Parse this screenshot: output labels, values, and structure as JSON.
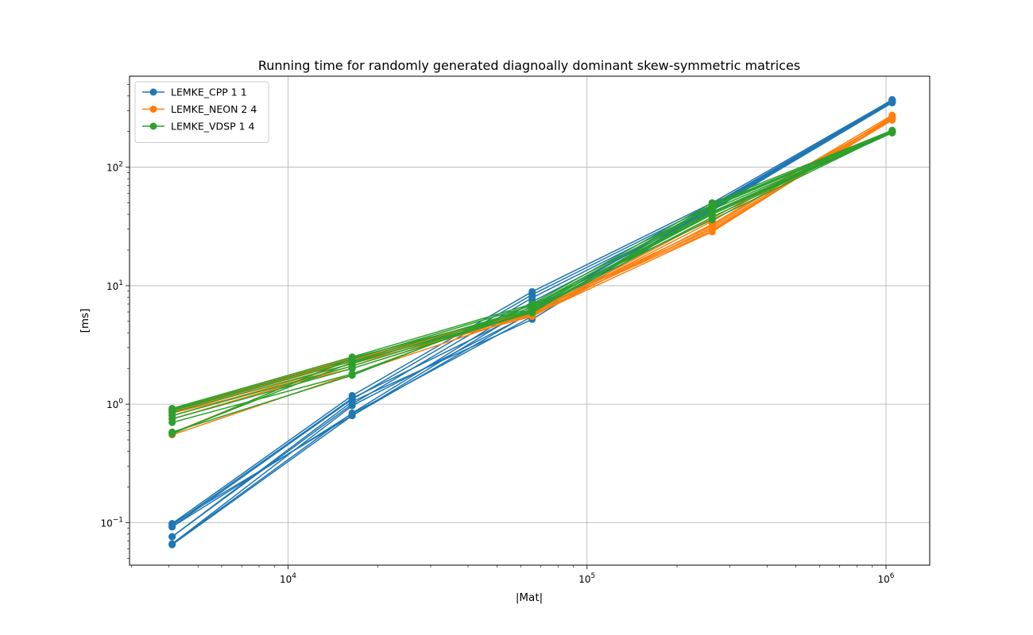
{
  "chart_data": {
    "type": "line",
    "title": "Running time for randomly generated diagnoally dominant skew-symmetric matrices",
    "xlabel": "|Mat|",
    "ylabel": "[ms]",
    "xscale": "log",
    "yscale": "log",
    "xlim": [
      2950,
      1400000
    ],
    "ylim": [
      0.0437,
      587
    ],
    "grid": true,
    "legend_position": "top-left",
    "x_ticks": [
      {
        "value": 10000,
        "base": "10",
        "exp": "4"
      },
      {
        "value": 100000,
        "base": "10",
        "exp": "5"
      },
      {
        "value": 1000000,
        "base": "10",
        "exp": "6"
      }
    ],
    "y_ticks": [
      {
        "value": 0.1,
        "base": "10",
        "exp": "−1"
      },
      {
        "value": 1,
        "base": "10",
        "exp": "0"
      },
      {
        "value": 10,
        "base": "10",
        "exp": "1"
      },
      {
        "value": 100,
        "base": "10",
        "exp": "2"
      }
    ],
    "x": [
      4096,
      16384,
      65536,
      262144,
      1048576
    ],
    "series": [
      {
        "name": "LEMKE_CPP 1 1",
        "color": "#1f77b4",
        "runs": [
          [
            0.098,
            1.18,
            8.9,
            50.0,
            370
          ],
          [
            0.092,
            1.1,
            8.4,
            48.0,
            360
          ],
          [
            0.076,
            1.0,
            7.9,
            46.0,
            355
          ],
          [
            0.066,
            0.84,
            7.3,
            45.0,
            362
          ],
          [
            0.065,
            0.8,
            6.8,
            44.0,
            350
          ],
          [
            0.095,
            1.12,
            6.3,
            48.0,
            365
          ],
          [
            0.066,
            0.97,
            5.9,
            47.0,
            358
          ],
          [
            0.092,
            0.83,
            5.5,
            46.0,
            372
          ],
          [
            0.076,
            1.05,
            5.2,
            44.0,
            352
          ],
          [
            0.098,
            0.8,
            6.0,
            43.0,
            368
          ]
        ]
      },
      {
        "name": "LEMKE_NEON 2 4",
        "color": "#ff7f0e",
        "runs": [
          [
            0.9,
            2.45,
            6.0,
            29.0,
            270
          ],
          [
            0.86,
            2.3,
            5.7,
            31.0,
            255
          ],
          [
            0.8,
            2.2,
            5.5,
            33.0,
            265
          ],
          [
            0.75,
            2.1,
            6.2,
            30.0,
            250
          ],
          [
            0.55,
            1.8,
            5.8,
            35.0,
            275
          ],
          [
            0.57,
            2.4,
            5.6,
            28.5,
            260
          ],
          [
            0.84,
            2.0,
            5.9,
            37.0,
            258
          ],
          [
            0.88,
            2.35,
            6.1,
            32.0,
            268
          ]
        ]
      },
      {
        "name": "LEMKE_VDSP 1 4",
        "color": "#2ca02c",
        "runs": [
          [
            0.92,
            2.5,
            7.0,
            50.0,
            205
          ],
          [
            0.9,
            2.4,
            6.8,
            46.0,
            200
          ],
          [
            0.88,
            2.3,
            6.5,
            42.0,
            198
          ],
          [
            0.85,
            2.2,
            6.3,
            40.0,
            195
          ],
          [
            0.8,
            2.1,
            6.1,
            38.0,
            202
          ],
          [
            0.75,
            2.0,
            6.0,
            44.0,
            197
          ],
          [
            0.7,
            1.8,
            6.6,
            48.0,
            203
          ],
          [
            0.58,
            1.75,
            6.9,
            36.0,
            199
          ],
          [
            0.56,
            2.45,
            6.2,
            41.0,
            196
          ],
          [
            0.57,
            2.25,
            5.9,
            47.0,
            201
          ]
        ]
      }
    ]
  }
}
